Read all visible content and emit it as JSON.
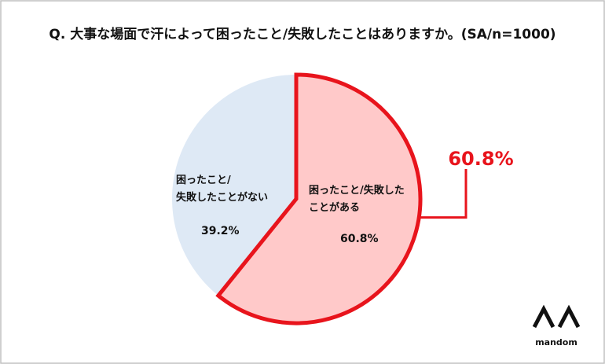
{
  "chart_data": {
    "type": "pie",
    "title": "Q. 大事な場面で汗によって困ったこと/失敗したことはありますか。(SA/n=1000)",
    "categories": [
      "困ったこと/失敗した\nことがある",
      "困ったこと/\n失敗したことがない"
    ],
    "values": [
      60.8,
      39.2
    ],
    "value_labels": [
      "60.8%",
      "39.2%"
    ],
    "colors": [
      "#ffc9c9",
      "#dee9f5"
    ],
    "highlight_color": "#e8141c",
    "logo": "mandom"
  }
}
